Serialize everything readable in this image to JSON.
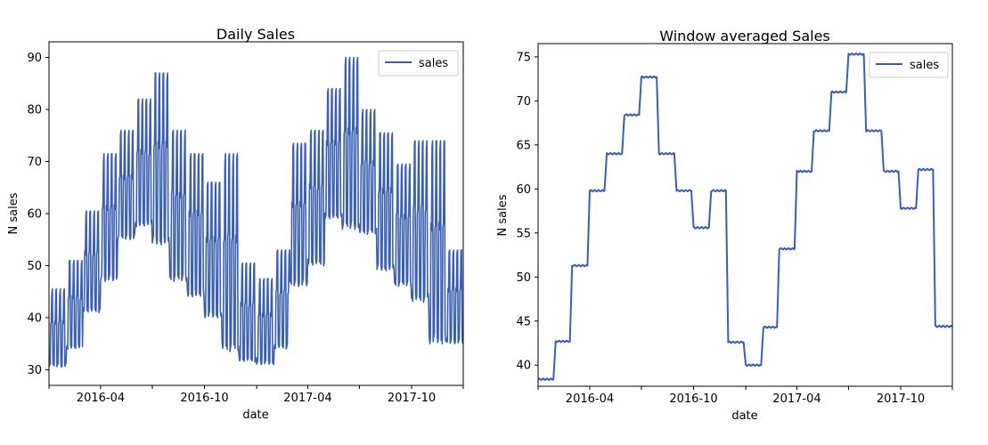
{
  "chart_data": [
    {
      "type": "line",
      "title": "Daily Sales",
      "xlabel": "date",
      "ylabel": "N sales",
      "xlim": [
        "2016-01-01",
        "2017-12-31"
      ],
      "ylim": [
        27,
        93
      ],
      "yticks": [
        30,
        40,
        50,
        60,
        70,
        80,
        90
      ],
      "xticks": [
        {
          "date": "2016-04-01",
          "label": "2016-04"
        },
        {
          "date": "2016-10-01",
          "label": "2016-10"
        },
        {
          "date": "2017-04-01",
          "label": "2017-04"
        },
        {
          "date": "2017-10-01",
          "label": "2017-10"
        }
      ],
      "x_minor_ticks": [
        "2016-01-01",
        "2016-07-01",
        "2017-01-01",
        "2017-07-01",
        "2017-12-31"
      ],
      "grid": false,
      "legend": {
        "position": "top-right",
        "entries": [
          "sales"
        ]
      },
      "series": [
        {
          "name": "sales",
          "color": "#3a5fb0",
          "pattern": "daily values with a weekly cycle; each month oscillates between a monthly low and high",
          "monthly_low": [
            30.5,
            34,
            41,
            47,
            55,
            57.5,
            54,
            47,
            44,
            40,
            33.5,
            31.5,
            31,
            34,
            46,
            50,
            59,
            57,
            56,
            49,
            46,
            43,
            35,
            35
          ],
          "monthly_high": [
            45.5,
            51,
            60.5,
            71.5,
            76,
            82,
            87,
            76,
            71.5,
            66,
            71.5,
            50.5,
            47.5,
            53,
            73.5,
            76,
            84,
            90,
            80,
            75.5,
            69.5,
            74,
            74,
            53
          ]
        }
      ]
    },
    {
      "type": "line",
      "title": "Window averaged Sales",
      "xlabel": "date",
      "ylabel": "N sales",
      "xlim": [
        "2016-01-01",
        "2017-12-31"
      ],
      "ylim": [
        37.6,
        76.5
      ],
      "yticks": [
        40,
        45,
        50,
        55,
        60,
        65,
        70,
        75
      ],
      "xticks": [
        {
          "date": "2016-04-01",
          "label": "2016-04"
        },
        {
          "date": "2016-10-01",
          "label": "2016-10"
        },
        {
          "date": "2017-04-01",
          "label": "2017-04"
        },
        {
          "date": "2017-10-01",
          "label": "2017-10"
        }
      ],
      "x_minor_ticks": [
        "2016-01-01",
        "2016-07-01",
        "2017-01-01",
        "2017-07-01",
        "2017-12-31"
      ],
      "grid": false,
      "legend": {
        "position": "top-right",
        "entries": [
          "sales"
        ]
      },
      "series": [
        {
          "name": "sales",
          "color": "#3a5fb0",
          "pattern": "monthly step function with short ramps between months",
          "monthly_values": [
            38.4,
            42.7,
            51.3,
            59.8,
            64.0,
            68.4,
            72.7,
            64.0,
            59.8,
            55.6,
            59.8,
            42.6,
            40.0,
            44.3,
            53.2,
            62.0,
            66.6,
            71.0,
            75.3,
            66.6,
            62.0,
            57.8,
            62.2,
            44.4
          ],
          "first_point": {
            "date": "2016-01-01",
            "value": 38.4
          },
          "last_point": {
            "date": "2017-12-31",
            "value": 44.4
          }
        }
      ]
    }
  ]
}
